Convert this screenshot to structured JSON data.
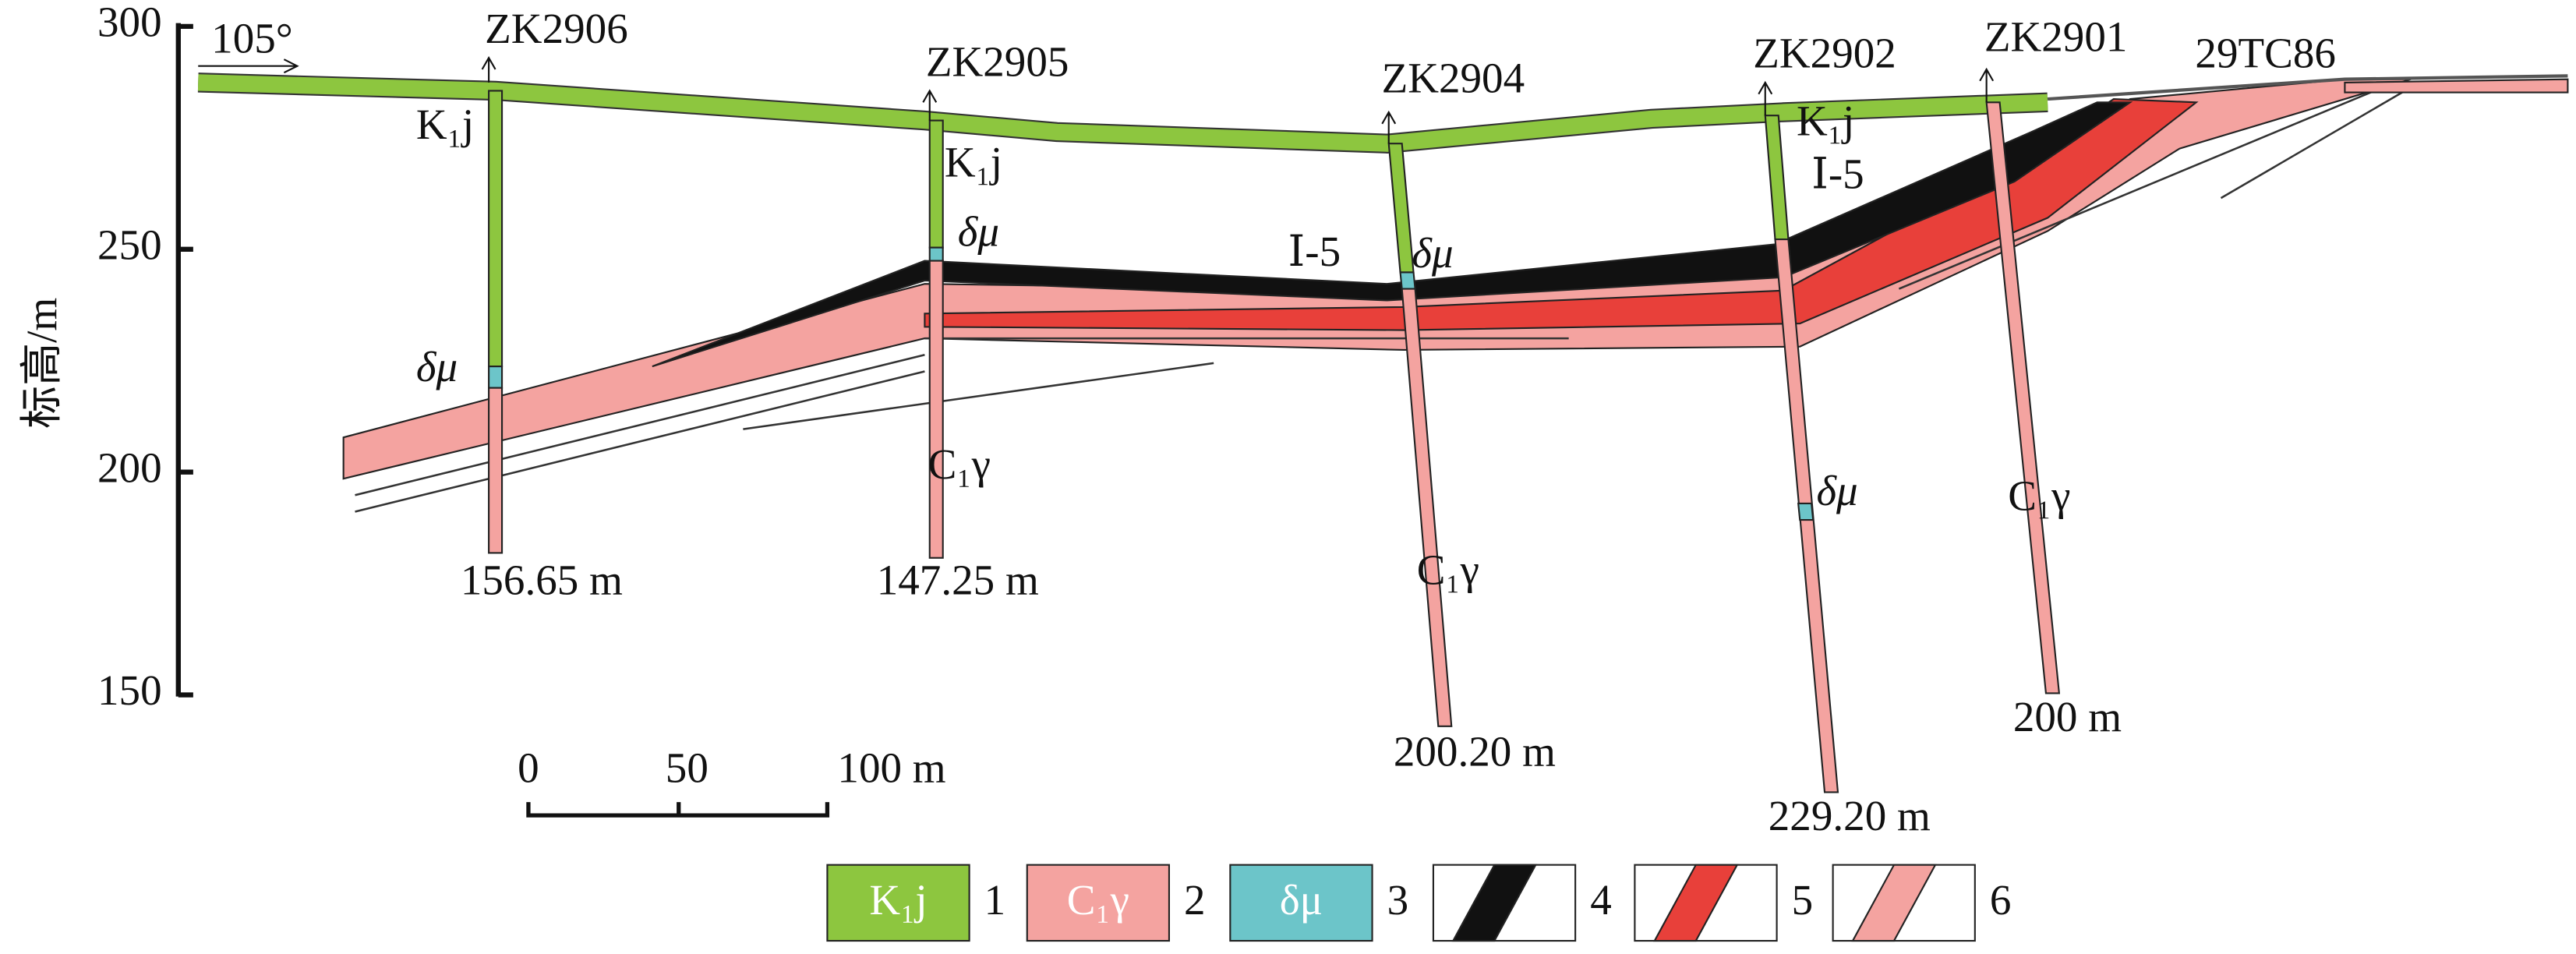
{
  "axis": {
    "label": "标高/m",
    "ticks": [
      300,
      250,
      200,
      150
    ]
  },
  "direction": "105°",
  "boreholes": [
    {
      "name": "ZK2906",
      "depth": "156.65 m"
    },
    {
      "name": "ZK2905",
      "depth": "147.25 m"
    },
    {
      "name": "ZK2904",
      "depth": "200.20 m"
    },
    {
      "name": "ZK2902",
      "depth": "229.20 m"
    },
    {
      "name": "ZK2901",
      "depth": "200 m"
    }
  ],
  "trench": "29TC86",
  "layer_labels": [
    "K₁j",
    "K₁j",
    "K₁j",
    "δμ",
    "δμ",
    "δμ",
    "δμ",
    "Ⅰ-5",
    "Ⅰ-5",
    "C₁γ",
    "C₁γ",
    "C₁γ"
  ],
  "scale_bar": [
    "0",
    "50",
    "100 m"
  ],
  "legend": [
    {
      "symbol": "K₁j",
      "number": "1"
    },
    {
      "symbol": "C₁γ",
      "number": "2"
    },
    {
      "symbol": "δμ",
      "number": "3"
    },
    {
      "number": "4"
    },
    {
      "number": "5"
    },
    {
      "number": "6"
    }
  ]
}
